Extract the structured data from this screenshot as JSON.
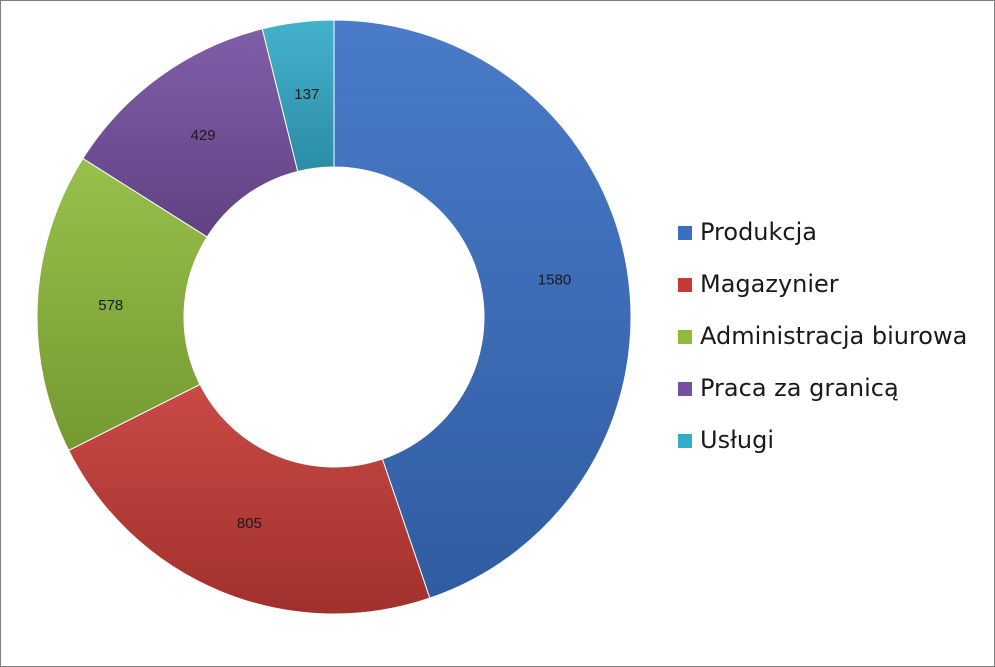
{
  "chart_data": {
    "type": "pie",
    "variant": "donut",
    "title": "",
    "categories": [
      "Produkcja",
      "Magazynier",
      "Administracja biurowa",
      "Praca za granicą",
      "Usługi"
    ],
    "values": [
      1580,
      805,
      578,
      429,
      137
    ],
    "colors": [
      "#3a70c4",
      "#c43a36",
      "#8fba3c",
      "#7550a0",
      "#34abc9"
    ],
    "data_labels": true,
    "legend_position": "right"
  }
}
